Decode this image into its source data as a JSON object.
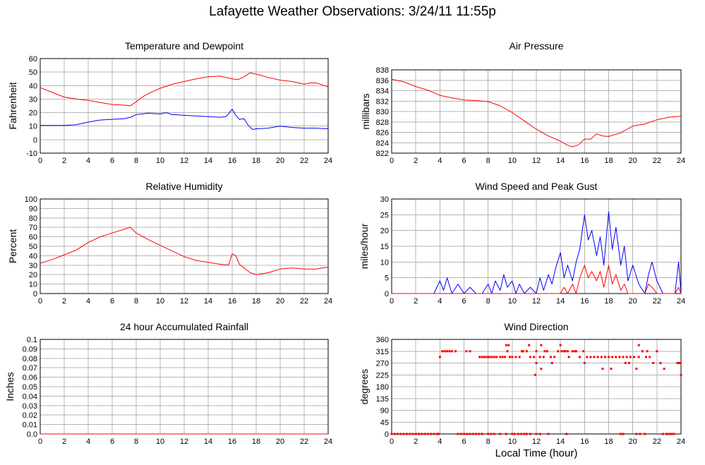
{
  "page": {
    "title": "Lafayette Weather Observations: 3/24/11 11:55p",
    "x_axis_label": "Local Time (hour)"
  },
  "colors": {
    "red": "#ff0000",
    "blue": "#0000ff",
    "grid": "#b4b4b4",
    "axis": "#000000"
  },
  "chart_data": [
    {
      "id": "temp",
      "type": "line",
      "title": "Temperature and Dewpoint",
      "xlabel": "",
      "ylabel": "Fahrenheit",
      "xlim": [
        0,
        24
      ],
      "ylim": [
        -10,
        60
      ],
      "xticks": [
        0,
        2,
        4,
        6,
        8,
        10,
        12,
        14,
        16,
        18,
        20,
        22,
        24
      ],
      "yticks": [
        -10,
        0,
        10,
        20,
        30,
        40,
        50,
        60
      ],
      "ytick_decimals": 0,
      "grid": true,
      "series": [
        {
          "color": "red",
          "style": "line",
          "x": [
            0,
            1,
            2,
            3,
            4,
            5,
            6,
            7,
            7.5,
            8,
            8.5,
            9,
            10,
            11,
            12,
            13,
            14,
            15,
            16,
            16.5,
            17,
            17.5,
            18,
            19,
            20,
            21,
            22,
            22.5,
            23,
            24
          ],
          "y": [
            38.5,
            35,
            31.5,
            30,
            29,
            27.5,
            26,
            25.5,
            25,
            28,
            31.5,
            34,
            38,
            41,
            43,
            45,
            46.5,
            47,
            45,
            44.5,
            46.5,
            49.5,
            48.5,
            46,
            44,
            43,
            41,
            42,
            42,
            39
          ]
        },
        {
          "color": "blue",
          "style": "line",
          "x": [
            0,
            1,
            2,
            3,
            4,
            5,
            6,
            7,
            7.5,
            8,
            9,
            10,
            10.5,
            11,
            12,
            13,
            14,
            15,
            15.5,
            16,
            16.3,
            16.6,
            17,
            17.3,
            17.7,
            18,
            19,
            20,
            21,
            22,
            23,
            24
          ],
          "y": [
            10.5,
            10.5,
            10.5,
            11,
            13,
            14.5,
            15,
            15.5,
            16.5,
            18.5,
            19.5,
            19,
            20,
            18.5,
            18,
            17.5,
            17,
            16.5,
            17,
            22.5,
            18,
            15,
            15.5,
            11,
            7.5,
            8,
            8.5,
            10,
            9,
            8.5,
            8.5,
            8
          ]
        }
      ]
    },
    {
      "id": "pressure",
      "type": "line",
      "title": "Air Pressure",
      "xlabel": "",
      "ylabel": "millibars",
      "xlim": [
        0,
        24
      ],
      "ylim": [
        822,
        838
      ],
      "xticks": [
        0,
        2,
        4,
        6,
        8,
        10,
        12,
        14,
        16,
        18,
        20,
        22,
        24
      ],
      "yticks": [
        822,
        824,
        826,
        828,
        830,
        832,
        834,
        836,
        838
      ],
      "ytick_decimals": 0,
      "grid": true,
      "series": [
        {
          "color": "red",
          "style": "line",
          "x": [
            0,
            1,
            2,
            3,
            4,
            5,
            6,
            7,
            8,
            9,
            10,
            11,
            12,
            13,
            14,
            14.5,
            15,
            15.5,
            16,
            16.5,
            17,
            17.5,
            18,
            19,
            20,
            21,
            22,
            23,
            24
          ],
          "y": [
            836.2,
            835.7,
            834.8,
            834.1,
            833.1,
            832.6,
            832.2,
            832.1,
            831.9,
            831.1,
            829.8,
            828.2,
            826.6,
            825.3,
            824.3,
            823.6,
            823.2,
            823.6,
            824.7,
            824.7,
            825.7,
            825.3,
            825.2,
            825.9,
            827.2,
            827.6,
            828.4,
            828.9,
            829.1
          ]
        }
      ]
    },
    {
      "id": "humidity",
      "type": "line",
      "title": "Relative Humidity",
      "xlabel": "",
      "ylabel": "Percent",
      "xlim": [
        0,
        24
      ],
      "ylim": [
        0,
        100
      ],
      "xticks": [
        0,
        2,
        4,
        6,
        8,
        10,
        12,
        14,
        16,
        18,
        20,
        22,
        24
      ],
      "yticks": [
        0,
        10,
        20,
        30,
        40,
        50,
        60,
        70,
        80,
        90,
        100
      ],
      "ytick_decimals": 0,
      "grid": true,
      "series": [
        {
          "color": "red",
          "style": "line",
          "x": [
            0,
            1,
            2,
            3,
            4,
            5,
            6,
            7,
            7.5,
            8,
            9,
            10,
            11,
            12,
            13,
            14,
            15,
            15.7,
            16,
            16.3,
            16.6,
            17,
            17.5,
            18,
            19,
            20,
            21,
            22,
            23,
            24
          ],
          "y": [
            32,
            36,
            41,
            46,
            54,
            60,
            64,
            68,
            70,
            64,
            57,
            51,
            45,
            39,
            35,
            33,
            31,
            30,
            42,
            40,
            31,
            27,
            22,
            20,
            22,
            26,
            27,
            26,
            26,
            28
          ]
        }
      ]
    },
    {
      "id": "wind",
      "type": "line",
      "title": "Wind Speed and Peak Gust",
      "xlabel": "",
      "ylabel": "miles/hour",
      "xlim": [
        0,
        24
      ],
      "ylim": [
        0,
        30
      ],
      "xticks": [
        0,
        2,
        4,
        6,
        8,
        10,
        12,
        14,
        16,
        18,
        20,
        22,
        24
      ],
      "yticks": [
        0,
        5,
        10,
        15,
        20,
        25,
        30
      ],
      "ytick_decimals": 0,
      "grid": true,
      "series": [
        {
          "color": "blue",
          "style": "line",
          "x": [
            0,
            3.5,
            4,
            4.3,
            4.6,
            5,
            5.5,
            6,
            6.5,
            7,
            7.5,
            8,
            8.3,
            8.6,
            9,
            9.3,
            9.6,
            10,
            10.3,
            10.6,
            11,
            11.5,
            12,
            12.3,
            12.6,
            13,
            13.3,
            13.6,
            14,
            14.3,
            14.6,
            15,
            15.3,
            15.6,
            16,
            16.3,
            16.6,
            17,
            17.3,
            17.6,
            18,
            18.3,
            18.6,
            19,
            19.3,
            19.6,
            20,
            20.5,
            21,
            21.3,
            21.6,
            22,
            22.5,
            23,
            23.5,
            23.8,
            24
          ],
          "y": [
            0,
            0,
            4,
            1,
            5,
            0,
            3,
            0,
            2,
            0,
            0,
            3,
            0,
            4,
            1,
            6,
            2,
            4,
            0,
            3,
            0,
            2,
            0,
            5,
            1,
            6,
            3,
            8,
            13,
            5,
            9,
            4,
            10,
            14,
            25,
            17,
            20,
            12,
            18,
            9,
            26,
            14,
            21,
            9,
            15,
            4,
            9,
            3,
            0,
            6,
            10,
            4,
            0,
            0,
            0,
            10,
            0
          ]
        },
        {
          "color": "red",
          "style": "line",
          "x": [
            0,
            13.5,
            14,
            14.3,
            14.6,
            15,
            15.3,
            15.6,
            16,
            16.3,
            16.6,
            17,
            17.3,
            17.6,
            18,
            18.3,
            18.6,
            19,
            19.3,
            19.6,
            20,
            20.5,
            21,
            21.3,
            21.6,
            22,
            23.5,
            23.8,
            24
          ],
          "y": [
            0,
            0,
            0,
            2,
            0,
            3,
            0,
            5,
            9,
            5,
            7,
            4,
            7,
            2,
            9,
            3,
            6,
            1,
            3,
            0,
            0,
            0,
            0,
            3,
            2,
            0,
            0,
            2,
            0
          ]
        }
      ]
    },
    {
      "id": "rain",
      "type": "line",
      "title": "24 hour Accumulated Rainfall",
      "xlabel": "",
      "ylabel": "Inches",
      "xlim": [
        0,
        24
      ],
      "ylim": [
        0,
        0.1
      ],
      "xticks": [
        0,
        2,
        4,
        6,
        8,
        10,
        12,
        14,
        16,
        18,
        20,
        22,
        24
      ],
      "yticks": [
        0,
        0.01,
        0.02,
        0.03,
        0.04,
        0.05,
        0.06,
        0.07,
        0.08,
        0.09,
        0.1
      ],
      "ytick_decimals": -1,
      "grid": true,
      "series": [
        {
          "color": "red",
          "style": "line",
          "x": [
            0,
            24
          ],
          "y": [
            0,
            0
          ]
        }
      ]
    },
    {
      "id": "direction",
      "type": "scatter",
      "title": "Wind Direction",
      "xlabel": "Local Time (hour)",
      "ylabel": "degrees",
      "xlim": [
        0,
        24
      ],
      "ylim": [
        0,
        360
      ],
      "xticks": [
        0,
        2,
        4,
        6,
        8,
        10,
        12,
        14,
        16,
        18,
        20,
        22,
        24
      ],
      "yticks": [
        0,
        45,
        90,
        135,
        180,
        225,
        270,
        315,
        360
      ],
      "ytick_decimals": 0,
      "grid": true,
      "series": [
        {
          "color": "red",
          "style": "points",
          "x": [
            0,
            0.25,
            0.5,
            0.75,
            1,
            1.25,
            1.5,
            1.75,
            2,
            2.25,
            2.5,
            2.75,
            3,
            3.25,
            3.5,
            3.75,
            3.9,
            5.5,
            5.75,
            6,
            6.25,
            6.5,
            6.75,
            7,
            7.25,
            7.5,
            8,
            8.25,
            8.5,
            9,
            9.5,
            10,
            10.2,
            10.5,
            10.75,
            11,
            11.2,
            11.5,
            12,
            12.3,
            13,
            14.5,
            19,
            19.2,
            20.3,
            20.6,
            21,
            22.5,
            22.8,
            23,
            23.2,
            23.4,
            4.0,
            4.2,
            4.4,
            4.6,
            4.8,
            5.0,
            5.3,
            6.2,
            6.5,
            7.3,
            7.5,
            7.7,
            7.9,
            8.1,
            8.3,
            8.5,
            8.7,
            9.0,
            9.2,
            9.4,
            9.6,
            9.8,
            10.0,
            10.3,
            10.6,
            10.9,
            11.2,
            11.5,
            11.8,
            12.0,
            12.3,
            12.6,
            12.9,
            13.2,
            13.5,
            13.8,
            14.1,
            14.4,
            14.7,
            15.0,
            15.3,
            15.6,
            15.9,
            16.2,
            16.5,
            16.8,
            17.1,
            17.4,
            17.7,
            18.0,
            18.3,
            18.6,
            18.9,
            19.2,
            19.5,
            19.8,
            20.1,
            20.5,
            20.8,
            21.1,
            21.4,
            21.7,
            22.0,
            22.3,
            23.8,
            23.9,
            24.0,
            9.5,
            9.7,
            10.8,
            11.4,
            12.4,
            12.7,
            14.0,
            14.3,
            14.6,
            15.2,
            20.5,
            21.2,
            12.0,
            12.4,
            13.3,
            16.0,
            17.5,
            18.2,
            19.4,
            19.7,
            20.3,
            22.3,
            22.6,
            23.7,
            11.9
          ],
          "y": [
            0,
            0,
            0,
            0,
            0,
            0,
            0,
            0,
            0,
            0,
            0,
            0,
            0,
            0,
            0,
            0,
            0,
            0,
            0,
            0,
            0,
            0,
            0,
            0,
            0,
            0,
            0,
            0,
            0,
            0,
            0,
            0,
            0,
            0,
            0,
            0,
            0,
            0,
            0,
            0,
            0,
            0,
            0,
            0,
            0,
            0,
            0,
            0,
            0,
            0,
            0,
            0,
            293,
            315,
            315,
            315,
            315,
            315,
            315,
            315,
            315,
            293,
            293,
            293,
            293,
            293,
            293,
            293,
            293,
            293,
            293,
            293,
            315,
            293,
            293,
            293,
            293,
            315,
            315,
            293,
            293,
            315,
            293,
            293,
            315,
            293,
            293,
            315,
            315,
            315,
            293,
            315,
            315,
            293,
            315,
            293,
            293,
            293,
            293,
            293,
            293,
            293,
            293,
            293,
            293,
            293,
            293,
            293,
            293,
            293,
            315,
            293,
            293,
            270,
            315,
            270,
            270,
            270,
            225,
            338,
            338,
            315,
            338,
            338,
            315,
            338,
            315,
            315,
            315,
            338,
            315,
            270,
            248,
            270,
            270,
            248,
            248,
            270,
            270,
            248,
            270,
            248,
            270,
            225
          ]
        }
      ]
    }
  ]
}
